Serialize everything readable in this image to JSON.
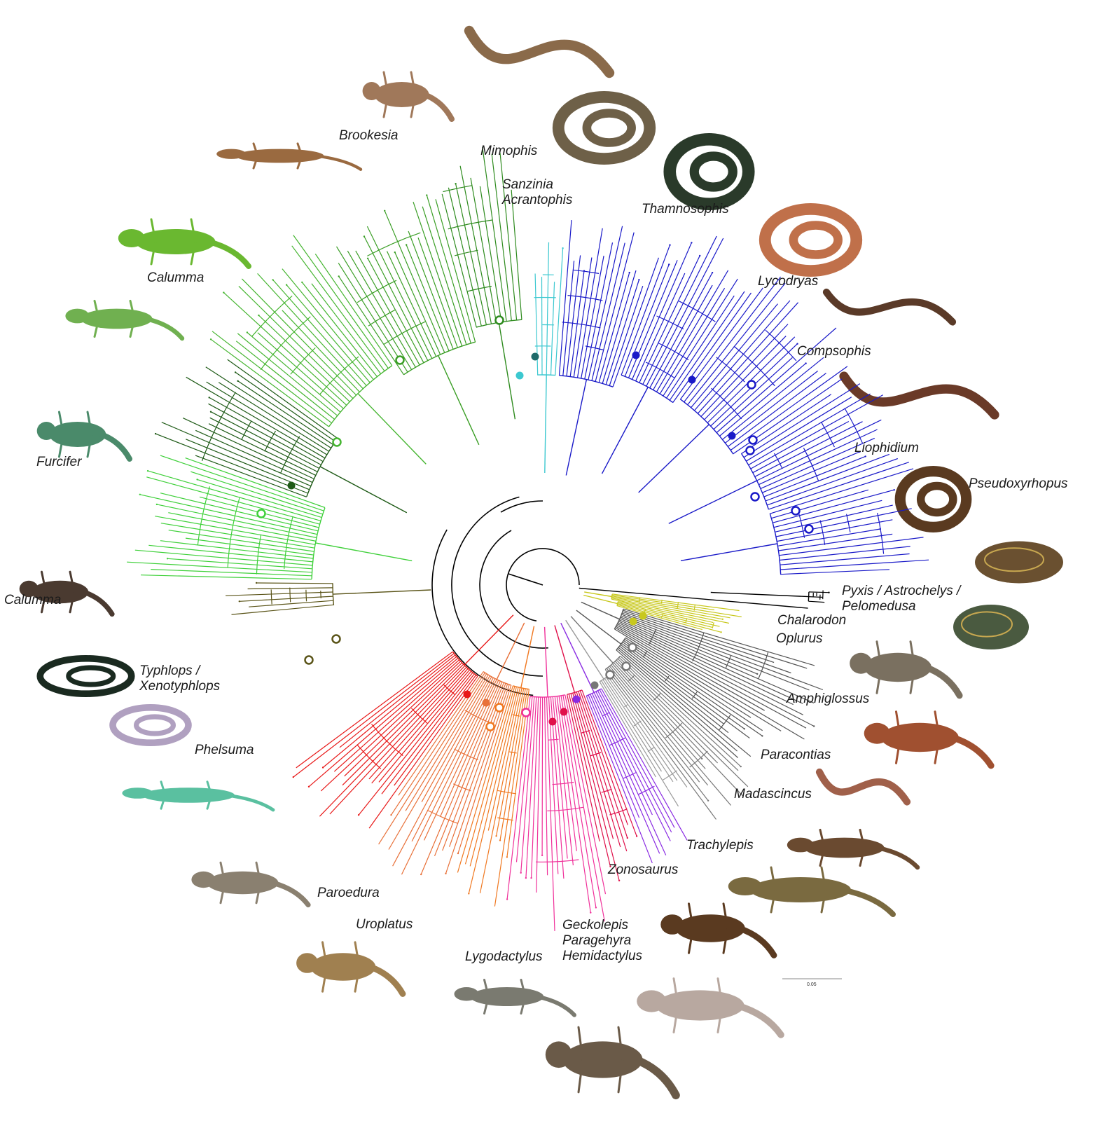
{
  "scale_bar": {
    "value": "0.05"
  },
  "clades": [
    {
      "id": "mimophis",
      "color": "#2e8b1e",
      "labels": [
        "Mimophis"
      ]
    },
    {
      "id": "brookesia",
      "color": "#3a9e25",
      "labels": [
        "Brookesia"
      ]
    },
    {
      "id": "calumma-upper",
      "color": "#45b530",
      "labels": [
        "Calumma"
      ]
    },
    {
      "id": "furcifer",
      "color": "#1e5a16",
      "labels": [
        "Furcifer"
      ]
    },
    {
      "id": "calumma-lower",
      "color": "#3fd03a",
      "labels": [
        "Calumma"
      ]
    },
    {
      "id": "sanzinia",
      "color": "#3cc8d0",
      "labels": [
        "Sanzinia",
        "Acrantophis"
      ]
    },
    {
      "id": "thamnosophis",
      "color": "#1919c8",
      "labels": [
        "Thamnosophis"
      ]
    },
    {
      "id": "lycodryas",
      "color": "#1919c8",
      "labels": [
        "Lycodryas"
      ]
    },
    {
      "id": "compsophis",
      "color": "#1919c8",
      "labels": [
        "Compsophis"
      ]
    },
    {
      "id": "liophidium",
      "color": "#1919c8",
      "labels": [
        "Liophidium"
      ]
    },
    {
      "id": "pseudoxyrhopus",
      "color": "#1919c8",
      "labels": [
        "Pseudoxyrhopus"
      ]
    },
    {
      "id": "turtles",
      "color": "#000000",
      "labels": [
        "Pyxis / Astrochelys /",
        "Pelomedusa"
      ]
    },
    {
      "id": "chalarodon",
      "color": "#c8c81e",
      "labels": [
        "Chalarodon"
      ]
    },
    {
      "id": "oplurus",
      "color": "#c8c81e",
      "labels": [
        "Oplurus"
      ]
    },
    {
      "id": "amphiglossus",
      "color": "#555555",
      "labels": [
        "Amphiglossus"
      ]
    },
    {
      "id": "paracontias",
      "color": "#555555",
      "labels": [
        "Paracontias"
      ]
    },
    {
      "id": "madascincus",
      "color": "#777777",
      "labels": [
        "Madascincus"
      ]
    },
    {
      "id": "trachylepis",
      "color": "#999999",
      "labels": [
        "Trachylepis"
      ]
    },
    {
      "id": "zonosaurus",
      "color": "#8a2be2",
      "labels": [
        "Zonosaurus"
      ]
    },
    {
      "id": "geckolepis",
      "color": "#e0104a",
      "labels": [
        "Geckolepis",
        "Paragehyra",
        "Hemidactylus"
      ]
    },
    {
      "id": "lygodactylus",
      "color": "#f0309a",
      "labels": [
        "Lygodactylus"
      ]
    },
    {
      "id": "uroplatus",
      "color": "#f07820",
      "labels": [
        "Uroplatus"
      ]
    },
    {
      "id": "paroedura",
      "color": "#e87038",
      "labels": [
        "Paroedura"
      ]
    },
    {
      "id": "phelsuma",
      "color": "#e81818",
      "labels": [
        "Phelsuma"
      ]
    },
    {
      "id": "typhlops",
      "color": "#5a5418",
      "labels": [
        "Typhlops /",
        "Xenotyphlops"
      ]
    }
  ],
  "photos": [
    "snake-brown-striped",
    "chameleon-brookesia-1",
    "chameleon-brookesia-2",
    "boa-patterned",
    "snake-striped-yellow",
    "snake-coiled-pink",
    "chameleon-green-long-nose",
    "chameleon-green-big",
    "chameleon-furcifer",
    "snake-brown-white-collar",
    "snake-brown-banded",
    "snake-brown-coiled",
    "tortoise-radiated",
    "turtle-pelomedusa",
    "chameleon-brown-calumma",
    "lizard-oplurus",
    "skink-amphiglossus",
    "snake-typhlops-black",
    "snake-typhlops-pale",
    "skink-paracontias",
    "gecko-phelsuma",
    "skink-madascincus",
    "gecko-paroedura",
    "skink-trachylepis",
    "skink-zonosaurus",
    "gecko-uroplatus",
    "gecko-lygodactylus",
    "gecko-geckolepis",
    "gecko-hemidactylus"
  ]
}
